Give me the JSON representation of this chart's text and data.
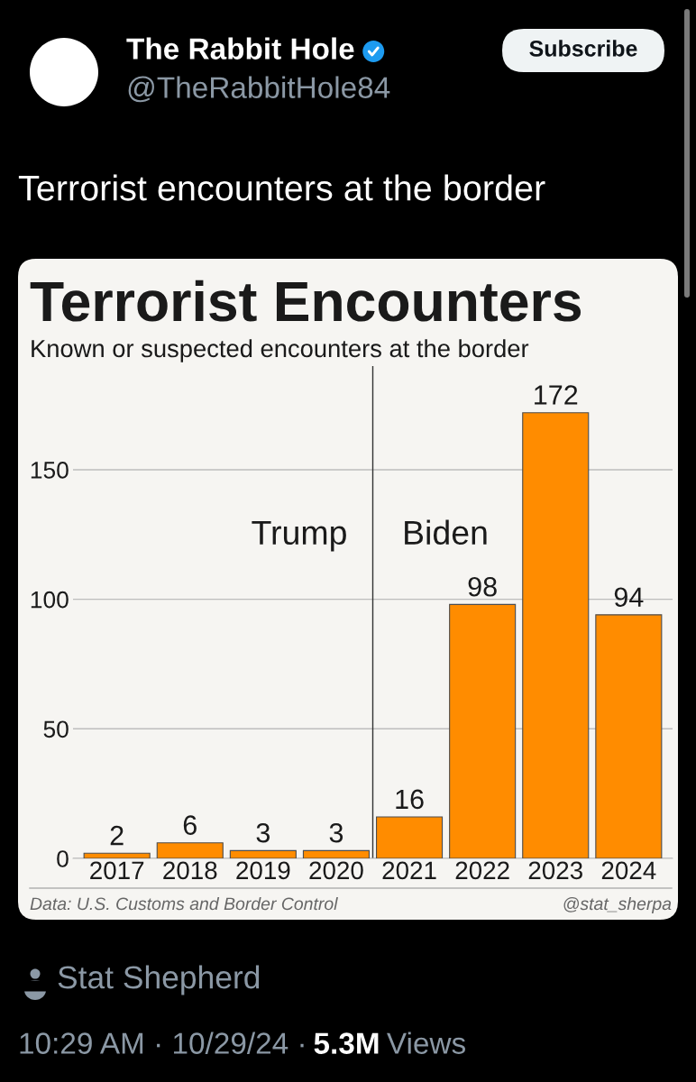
{
  "chart_data": {
    "type": "bar",
    "title": "Terrorist Encounters",
    "subtitle": "Known or suspected encounters at the border",
    "x": [
      2017,
      2018,
      2019,
      2020,
      2021,
      2022,
      2023,
      2024
    ],
    "values": [
      2,
      6,
      3,
      3,
      16,
      98,
      172,
      94
    ],
    "color": "#ff8c00",
    "xlim": [
      2016.4,
      2024.6
    ],
    "xticks": [
      2017,
      2018,
      2019,
      2020,
      2021,
      2022,
      2023,
      2024
    ],
    "ylim": [
      0,
      190
    ],
    "yticks": [
      0,
      50,
      100,
      150
    ],
    "grid": "y",
    "data_labels": true,
    "ref_lines": [
      {
        "axis": "x",
        "value": 2020.5,
        "color": "#333333"
      }
    ],
    "annotations": [
      "The Rabbit Hole",
      "@TheRabbitHole84",
      "Subscribe",
      "Terrorist encounters at the border",
      "Trump",
      "Biden",
      "Data: U.S. Customs and Border Control",
      "@stat_sherpa",
      "Stat Shepherd",
      "10:29 AM · 10/29/24 ·",
      "5.3M",
      "Views"
    ]
  }
}
